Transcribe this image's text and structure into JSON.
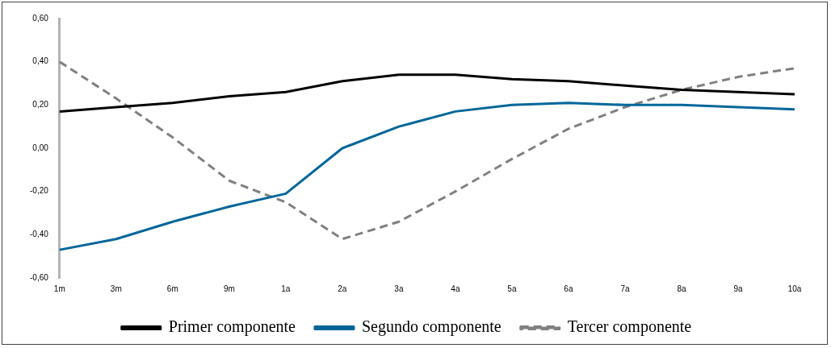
{
  "chart_data": {
    "type": "line",
    "categories": [
      "1m",
      "3m",
      "6m",
      "9m",
      "1a",
      "2a",
      "3a",
      "4a",
      "5a",
      "6a",
      "7a",
      "8a",
      "9a",
      "10a"
    ],
    "series": [
      {
        "name": "Primer componente",
        "color": "#000000",
        "line_style": "solid",
        "values": [
          0.17,
          0.19,
          0.21,
          0.24,
          0.26,
          0.31,
          0.34,
          0.34,
          0.32,
          0.31,
          0.29,
          0.27,
          0.26,
          0.25
        ]
      },
      {
        "name": "Segundo componente",
        "color": "#006699",
        "line_style": "solid",
        "values": [
          -0.47,
          -0.42,
          -0.34,
          -0.27,
          -0.21,
          0.0,
          0.1,
          0.17,
          0.2,
          0.21,
          0.2,
          0.2,
          0.19,
          0.18
        ]
      },
      {
        "name": "Tercer componente",
        "color": "#808080",
        "line_style": "dashed",
        "values": [
          0.4,
          0.23,
          0.05,
          -0.15,
          -0.25,
          -0.42,
          -0.34,
          -0.2,
          -0.05,
          0.09,
          0.19,
          0.27,
          0.33,
          0.37
        ]
      }
    ],
    "ylim": [
      -0.6,
      0.6
    ],
    "yticks": [
      {
        "value": 0.6,
        "label": "0,60"
      },
      {
        "value": 0.4,
        "label": "0,40"
      },
      {
        "value": 0.2,
        "label": "0,20"
      },
      {
        "value": 0,
        "label": "0,00"
      },
      {
        "value": -0.2,
        "label": "-0,20"
      },
      {
        "value": -0.4,
        "label": "-0,40"
      },
      {
        "value": -0.6,
        "label": "-0,60"
      }
    ],
    "grid": false,
    "legend": "bottom",
    "marker": "none"
  }
}
